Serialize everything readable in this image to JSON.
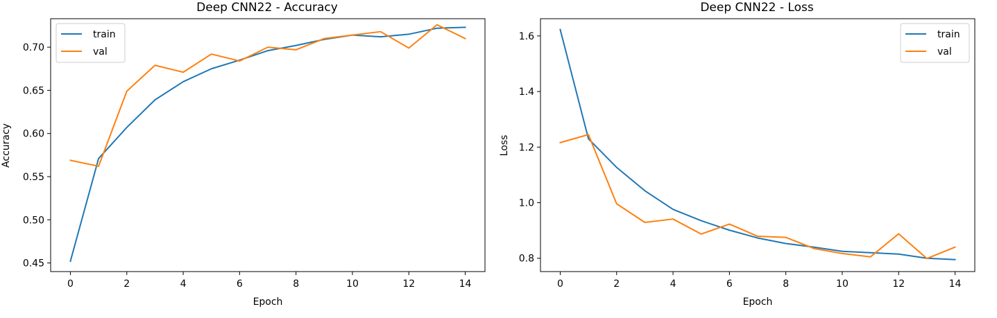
{
  "chart_data": [
    {
      "type": "line",
      "title": "Deep CNN22 - Accuracy",
      "xlabel": "Epoch",
      "ylabel": "Accuracy",
      "xlim": [
        -0.7,
        14.7
      ],
      "ylim": [
        0.44,
        0.733
      ],
      "xticks": [
        0,
        2,
        4,
        6,
        8,
        10,
        12,
        14
      ],
      "xtick_labels": [
        "0",
        "2",
        "4",
        "6",
        "8",
        "10",
        "12",
        "14"
      ],
      "yticks": [
        0.45,
        0.5,
        0.55,
        0.6,
        0.65,
        0.7
      ],
      "ytick_labels": [
        "0.45",
        "0.50",
        "0.55",
        "0.60",
        "0.65",
        "0.70"
      ],
      "legend_position": "top-left",
      "x": [
        0,
        1,
        2,
        3,
        4,
        5,
        6,
        7,
        8,
        9,
        10,
        11,
        12,
        13,
        14
      ],
      "series": [
        {
          "name": "train",
          "color": "#1f77b4",
          "values": [
            0.452,
            0.571,
            0.607,
            0.639,
            0.66,
            0.675,
            0.685,
            0.696,
            0.702,
            0.709,
            0.714,
            0.712,
            0.715,
            0.722,
            0.723
          ]
        },
        {
          "name": "val",
          "color": "#ff7f0e",
          "values": [
            0.569,
            0.562,
            0.649,
            0.679,
            0.671,
            0.692,
            0.684,
            0.7,
            0.697,
            0.71,
            0.714,
            0.718,
            0.699,
            0.726,
            0.71
          ]
        }
      ]
    },
    {
      "type": "line",
      "title": "Deep CNN22 - Loss",
      "xlabel": "Epoch",
      "ylabel": "Loss",
      "xlim": [
        -0.7,
        14.7
      ],
      "ylim": [
        0.752,
        1.662
      ],
      "xticks": [
        0,
        2,
        4,
        6,
        8,
        10,
        12,
        14
      ],
      "xtick_labels": [
        "0",
        "2",
        "4",
        "6",
        "8",
        "10",
        "12",
        "14"
      ],
      "yticks": [
        0.8,
        1.0,
        1.2,
        1.4,
        1.6
      ],
      "ytick_labels": [
        "0.8",
        "1.0",
        "1.2",
        "1.4",
        "1.6"
      ],
      "legend_position": "top-right",
      "x": [
        0,
        1,
        2,
        3,
        4,
        5,
        6,
        7,
        8,
        9,
        10,
        11,
        12,
        13,
        14
      ],
      "series": [
        {
          "name": "train",
          "color": "#1f77b4",
          "values": [
            1.623,
            1.23,
            1.127,
            1.043,
            0.976,
            0.935,
            0.901,
            0.873,
            0.853,
            0.84,
            0.825,
            0.82,
            0.815,
            0.8,
            0.795
          ]
        },
        {
          "name": "val",
          "color": "#ff7f0e",
          "values": [
            1.216,
            1.245,
            0.996,
            0.929,
            0.941,
            0.887,
            0.923,
            0.879,
            0.875,
            0.835,
            0.817,
            0.805,
            0.888,
            0.799,
            0.84
          ]
        }
      ]
    }
  ]
}
